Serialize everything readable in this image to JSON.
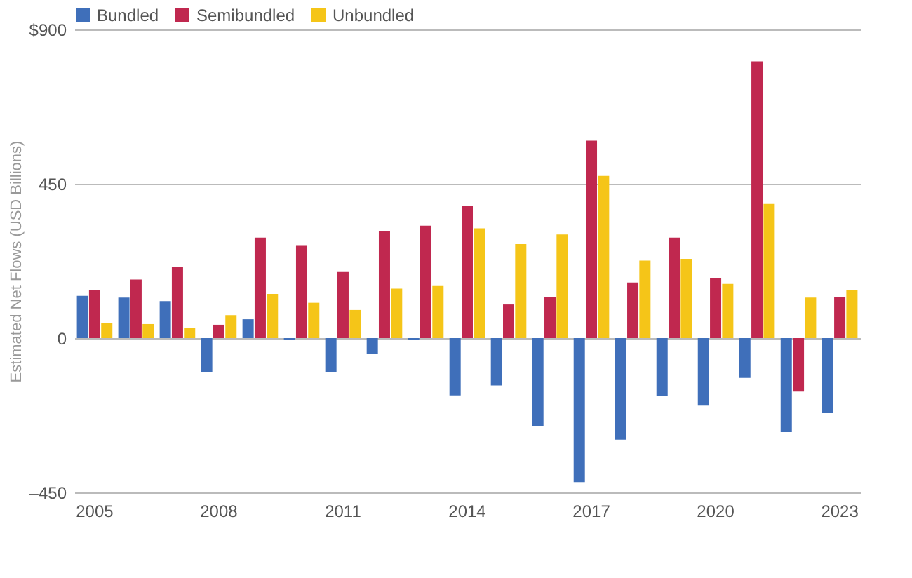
{
  "chart_data": {
    "type": "bar",
    "ylabel": "Estimated Net Flows (USD Billions)",
    "categories": [
      "2005",
      null,
      null,
      "2008",
      null,
      null,
      "2011",
      null,
      null,
      "2014",
      null,
      null,
      "2017",
      null,
      null,
      "2020",
      null,
      null,
      "2023"
    ],
    "series": [
      {
        "name": "Bundled",
        "color": "#3f6fba",
        "values": [
          123,
          118,
          108,
          -100,
          55,
          -6,
          -100,
          -46,
          -6,
          -167,
          -138,
          -257,
          -420,
          -296,
          -170,
          -197,
          -116,
          -274,
          -219
        ]
      },
      {
        "name": "Semibundled",
        "color": "#c0284f",
        "values": [
          139,
          171,
          207,
          39,
          293,
          271,
          193,
          312,
          328,
          386,
          98,
          120,
          576,
          162,
          293,
          174,
          807,
          -156,
          120
        ]
      },
      {
        "name": "Unbundled",
        "color": "#f5c518",
        "values": [
          45,
          41,
          30,
          67,
          129,
          103,
          82,
          144,
          152,
          320,
          274,
          302,
          473,
          226,
          231,
          158,
          391,
          118,
          141
        ]
      }
    ],
    "ylim": [
      -450,
      900
    ],
    "yticks": [
      {
        "value": -450,
        "label": "–450"
      },
      0,
      450,
      {
        "value": 900,
        "label": "$900"
      }
    ],
    "grid": "y",
    "legend": "top left"
  }
}
